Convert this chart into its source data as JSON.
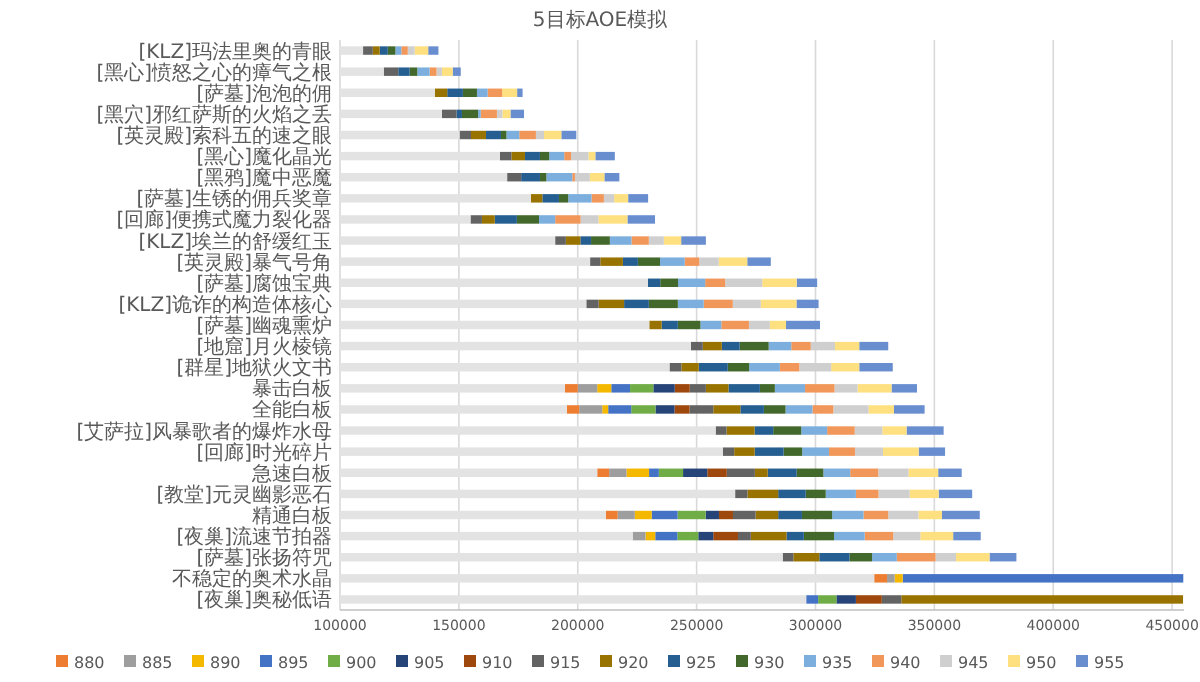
{
  "chart_data": {
    "type": "bar",
    "orientation": "horizontal",
    "title": "5目标AOE模拟",
    "categories": [
      "[KLZ]玛法里奥的青眼",
      "[黑心]愤怒之心的瘴气之根",
      "[萨墓]泡泡的佣",
      "[黑穴]邪红萨斯的火焰之丢",
      "[英灵殿]索科五的速之眼",
      "[黑心]魔化晶光",
      "[黑鸦]魔中恶魔",
      "[萨墓]生锈的佣兵奖章",
      "[回廊]便携式魔力裂化器",
      "[KLZ]埃兰的舒缓红玉",
      "[英灵殿]暴气号角",
      "[萨墓]腐蚀宝典",
      "[KLZ]诡诈的构造体核心",
      "[萨墓]幽魂熏炉",
      "[地窟]月火棱镜",
      "[群星]地狱火文书",
      "暴击白板",
      "全能白板",
      "[艾萨拉]风暴歌者的爆炸水母",
      "[回廊]时光碎片",
      "急速白板",
      "[教堂]元灵幽影恶石",
      "精通白板",
      "[夜巢]流速节拍器",
      "[萨墓]张扬符咒",
      "不稳定的奥术水晶",
      "[夜巢]奥秘低语"
    ],
    "series": [
      {
        "color": "#e3e3e3",
        "base": [
          100000,
          100000,
          100000,
          100000,
          100000,
          100000,
          100000,
          100000,
          100000,
          100000,
          100000,
          100000,
          100000,
          100000,
          100000,
          100000,
          100000,
          100000,
          100000,
          100000,
          100000,
          100000,
          100000,
          100000,
          100000,
          100000,
          100000
        ],
        "values": [
          9700,
          18400,
          39900,
          42900,
          50300,
          67300,
          70300,
          80300,
          54900,
          90500,
          105200,
          129500,
          103600,
          130100,
          147600,
          138600,
          94600,
          95400,
          158000,
          161000,
          108200,
          166200,
          111800,
          123100,
          186200,
          224700,
          196100
        ]
      },
      {
        "name": "880",
        "color": "#ed7d31",
        "base": [
          null,
          null,
          null,
          null,
          null,
          null,
          null,
          null,
          null,
          null,
          null,
          null,
          null,
          null,
          null,
          null,
          194600,
          195400,
          null,
          null,
          208200,
          null,
          211800,
          null,
          null,
          324700,
          null
        ],
        "values": [
          null,
          null,
          null,
          null,
          null,
          null,
          null,
          null,
          null,
          null,
          null,
          null,
          null,
          null,
          null,
          null,
          5400,
          5200,
          null,
          null,
          5000,
          null,
          5000,
          null,
          null,
          5400,
          null
        ]
      },
      {
        "name": "885",
        "color": "#9e9e9e",
        "base": [
          null,
          null,
          null,
          null,
          null,
          null,
          null,
          null,
          null,
          null,
          null,
          null,
          null,
          null,
          null,
          null,
          200000,
          200600,
          null,
          null,
          213200,
          null,
          216800,
          223100,
          null,
          330100,
          null
        ],
        "values": [
          null,
          null,
          null,
          null,
          null,
          null,
          null,
          null,
          null,
          null,
          null,
          null,
          null,
          null,
          null,
          null,
          8200,
          9700,
          null,
          null,
          7300,
          null,
          7200,
          5400,
          null,
          3200,
          null
        ]
      },
      {
        "name": "890",
        "color": "#f5b800",
        "base": [
          null,
          null,
          null,
          null,
          null,
          null,
          null,
          null,
          null,
          null,
          null,
          null,
          null,
          null,
          null,
          null,
          208200,
          210300,
          null,
          null,
          220500,
          null,
          224000,
          228500,
          null,
          333300,
          null
        ],
        "values": [
          null,
          null,
          null,
          null,
          null,
          null,
          null,
          null,
          null,
          null,
          null,
          null,
          null,
          null,
          null,
          null,
          5900,
          2500,
          null,
          null,
          9500,
          null,
          7100,
          4100,
          null,
          3400,
          null
        ]
      },
      {
        "name": "895",
        "color": "#4472c4",
        "base": [
          null,
          null,
          null,
          null,
          null,
          null,
          null,
          null,
          null,
          null,
          null,
          null,
          null,
          null,
          null,
          null,
          214100,
          212800,
          null,
          null,
          230000,
          null,
          231100,
          232600,
          null,
          336700,
          296100
        ],
        "values": [
          null,
          null,
          null,
          null,
          null,
          null,
          null,
          null,
          null,
          null,
          null,
          null,
          null,
          null,
          null,
          null,
          7900,
          9700,
          null,
          null,
          4100,
          null,
          10900,
          9300,
          null,
          118000,
          5000
        ]
      },
      {
        "name": "900",
        "color": "#70ad47",
        "base": [
          null,
          null,
          null,
          null,
          null,
          null,
          null,
          null,
          null,
          null,
          null,
          null,
          null,
          null,
          null,
          null,
          222000,
          222500,
          null,
          null,
          234100,
          null,
          242000,
          241900,
          null,
          null,
          301100
        ],
        "values": [
          null,
          null,
          null,
          null,
          null,
          null,
          null,
          null,
          null,
          null,
          null,
          null,
          null,
          null,
          null,
          null,
          9800,
          10200,
          null,
          null,
          10200,
          null,
          11800,
          8800,
          null,
          null,
          7700
        ]
      },
      {
        "name": "905",
        "color": "#264478",
        "base": [
          null,
          null,
          null,
          null,
          null,
          null,
          null,
          null,
          null,
          null,
          null,
          null,
          null,
          null,
          null,
          null,
          231800,
          232700,
          null,
          null,
          244300,
          null,
          253800,
          250700,
          null,
          null,
          308800
        ],
        "values": [
          null,
          null,
          null,
          null,
          null,
          null,
          null,
          null,
          null,
          null,
          null,
          null,
          null,
          null,
          null,
          null,
          9000,
          8000,
          null,
          null,
          10200,
          null,
          5600,
          6300,
          null,
          null,
          8200
        ]
      },
      {
        "name": "910",
        "color": "#9e480e",
        "base": [
          null,
          null,
          null,
          null,
          null,
          null,
          null,
          null,
          null,
          null,
          null,
          null,
          null,
          null,
          null,
          null,
          240800,
          240700,
          null,
          null,
          254500,
          null,
          259400,
          257000,
          null,
          null,
          317000
        ],
        "values": [
          null,
          null,
          null,
          null,
          null,
          null,
          null,
          null,
          null,
          null,
          null,
          null,
          null,
          null,
          null,
          null,
          6300,
          6300,
          null,
          null,
          8200,
          null,
          5900,
          10400,
          null,
          null,
          10900
        ]
      },
      {
        "name": "915",
        "color": "#636363",
        "base": [
          109700,
          118400,
          null,
          142900,
          150300,
          167300,
          170300,
          null,
          154900,
          190500,
          205200,
          null,
          203600,
          null,
          247600,
          238600,
          247100,
          247000,
          258000,
          261000,
          262700,
          266200,
          265300,
          267400,
          286200,
          null,
          327900
        ],
        "values": [
          4100,
          6100,
          null,
          6100,
          4800,
          4800,
          5900,
          null,
          4800,
          4500,
          4300,
          null,
          5200,
          null,
          5000,
          5000,
          6800,
          10000,
          4600,
          4800,
          11800,
          5200,
          9500,
          5400,
          4500,
          null,
          8200
        ]
      },
      {
        "name": "920",
        "color": "#997300",
        "base": [
          113800,
          null,
          139900,
          null,
          155100,
          172100,
          null,
          180300,
          159700,
          195000,
          209500,
          null,
          208800,
          230100,
          252600,
          243600,
          253900,
          257000,
          262600,
          265800,
          274500,
          271400,
          274800,
          272800,
          290700,
          null,
          336100
        ],
        "values": [
          2900,
          null,
          5200,
          null,
          6300,
          5700,
          null,
          4800,
          5400,
          6100,
          9500,
          null,
          10700,
          5200,
          8000,
          7300,
          9500,
          11400,
          11800,
          8600,
          5400,
          12900,
          9500,
          15000,
          10900,
          null,
          118500
        ]
      },
      {
        "name": "925",
        "color": "#255e91",
        "base": [
          116700,
          124500,
          145100,
          149000,
          161400,
          177800,
          176200,
          185100,
          165100,
          201100,
          219000,
          229500,
          219500,
          235300,
          260600,
          250900,
          263400,
          268400,
          274400,
          274400,
          279900,
          284300,
          284300,
          287800,
          301600,
          null,
          null
        ],
        "values": [
          3400,
          4800,
          6600,
          2300,
          6300,
          6300,
          7900,
          7000,
          9300,
          4500,
          6300,
          5200,
          10400,
          6800,
          7500,
          12200,
          13200,
          9900,
          7800,
          12200,
          12200,
          11600,
          10000,
          7300,
          12700,
          null,
          null
        ]
      },
      {
        "name": "930",
        "color": "#43682b",
        "base": [
          120100,
          129300,
          151700,
          151300,
          167700,
          184100,
          184100,
          192100,
          174400,
          205600,
          225300,
          234700,
          229900,
          242100,
          268100,
          263100,
          276600,
          278300,
          282200,
          286600,
          292100,
          295900,
          294300,
          295100,
          314300,
          null,
          null
        ],
        "values": [
          3200,
          3200,
          5900,
          6800,
          2300,
          3900,
          2700,
          3900,
          9300,
          7900,
          9300,
          7500,
          12200,
          9500,
          12200,
          9000,
          6300,
          9100,
          11800,
          7800,
          11200,
          8400,
          12700,
          12700,
          9500,
          null,
          null
        ]
      },
      {
        "name": "935",
        "color": "#7cafdd",
        "base": [
          123300,
          132500,
          157600,
          158100,
          170000,
          188000,
          186800,
          196000,
          183700,
          213500,
          234600,
          242200,
          242100,
          251600,
          280300,
          272100,
          282900,
          287400,
          294000,
          294400,
          303300,
          304300,
          307000,
          307800,
          323800,
          null,
          null
        ],
        "values": [
          2500,
          5200,
          4500,
          1100,
          5400,
          6300,
          10900,
          9800,
          6800,
          9100,
          10400,
          11400,
          10900,
          8800,
          9500,
          12900,
          12700,
          11300,
          10900,
          11300,
          11300,
          12700,
          13200,
          12900,
          10400,
          null,
          null
        ]
      },
      {
        "name": "940",
        "color": "#f1975a",
        "base": [
          125800,
          137700,
          162100,
          159200,
          175400,
          194300,
          197700,
          205800,
          190500,
          222600,
          245000,
          253600,
          253000,
          260400,
          289800,
          285000,
          295600,
          298700,
          304900,
          305700,
          314600,
          317000,
          320200,
          320700,
          334200,
          null,
          null
        ],
        "values": [
          2700,
          2900,
          6100,
          6800,
          7000,
          2900,
          1100,
          5200,
          10700,
          7300,
          6100,
          8400,
          12200,
          11600,
          8200,
          8200,
          12400,
          8800,
          11600,
          10900,
          11800,
          9500,
          10400,
          12000,
          16300,
          null,
          null
        ]
      },
      {
        "name": "945",
        "color": "#cfcfcf",
        "base": [
          128500,
          140600,
          null,
          166000,
          182400,
          197200,
          198800,
          211000,
          201200,
          229900,
          251100,
          262000,
          265200,
          272000,
          298000,
          293200,
          308000,
          307500,
          316500,
          316600,
          326400,
          326500,
          330600,
          332700,
          350500,
          null,
          null
        ],
        "values": [
          2900,
          2300,
          null,
          2300,
          3400,
          7300,
          6300,
          4300,
          7500,
          6300,
          8200,
          15600,
          11800,
          8800,
          10200,
          13400,
          9700,
          14800,
          11600,
          11800,
          12700,
          13100,
          12700,
          11400,
          8600,
          null,
          null
        ]
      },
      {
        "name": "950",
        "color": "#ffe080",
        "base": [
          131400,
          142900,
          168200,
          168300,
          185800,
          204500,
          205100,
          215300,
          208700,
          236200,
          259300,
          277600,
          277000,
          280800,
          308200,
          306600,
          317700,
          322300,
          328100,
          328400,
          339100,
          339600,
          343300,
          344100,
          359100,
          null,
          null
        ],
        "values": [
          5700,
          4500,
          6300,
          3400,
          7300,
          2900,
          6100,
          5900,
          12200,
          7300,
          12000,
          14500,
          15000,
          6800,
          10200,
          11800,
          14300,
          10700,
          10200,
          15000,
          12500,
          12200,
          9900,
          13800,
          14100,
          null,
          null
        ]
      },
      {
        "name": "955",
        "color": "#698ed0",
        "base": [
          137100,
          147400,
          174500,
          171700,
          193100,
          207400,
          211200,
          221200,
          220900,
          243500,
          271300,
          292100,
          292000,
          287600,
          318400,
          318400,
          332000,
          333000,
          338300,
          343400,
          351600,
          351800,
          353200,
          357900,
          373200,
          null,
          null
        ],
        "values": [
          4300,
          3400,
          2300,
          5700,
          6300,
          8200,
          6300,
          8400,
          11600,
          10400,
          9900,
          8600,
          9300,
          14300,
          12200,
          14100,
          10700,
          12900,
          15600,
          11100,
          9900,
          14100,
          15900,
          11600,
          11300,
          null,
          null
        ]
      }
    ],
    "xlim": [
      100000,
      455000
    ],
    "xticks": [
      100000,
      150000,
      200000,
      250000,
      300000,
      350000,
      400000,
      450000
    ],
    "grid": "x",
    "legend": "bottom"
  }
}
